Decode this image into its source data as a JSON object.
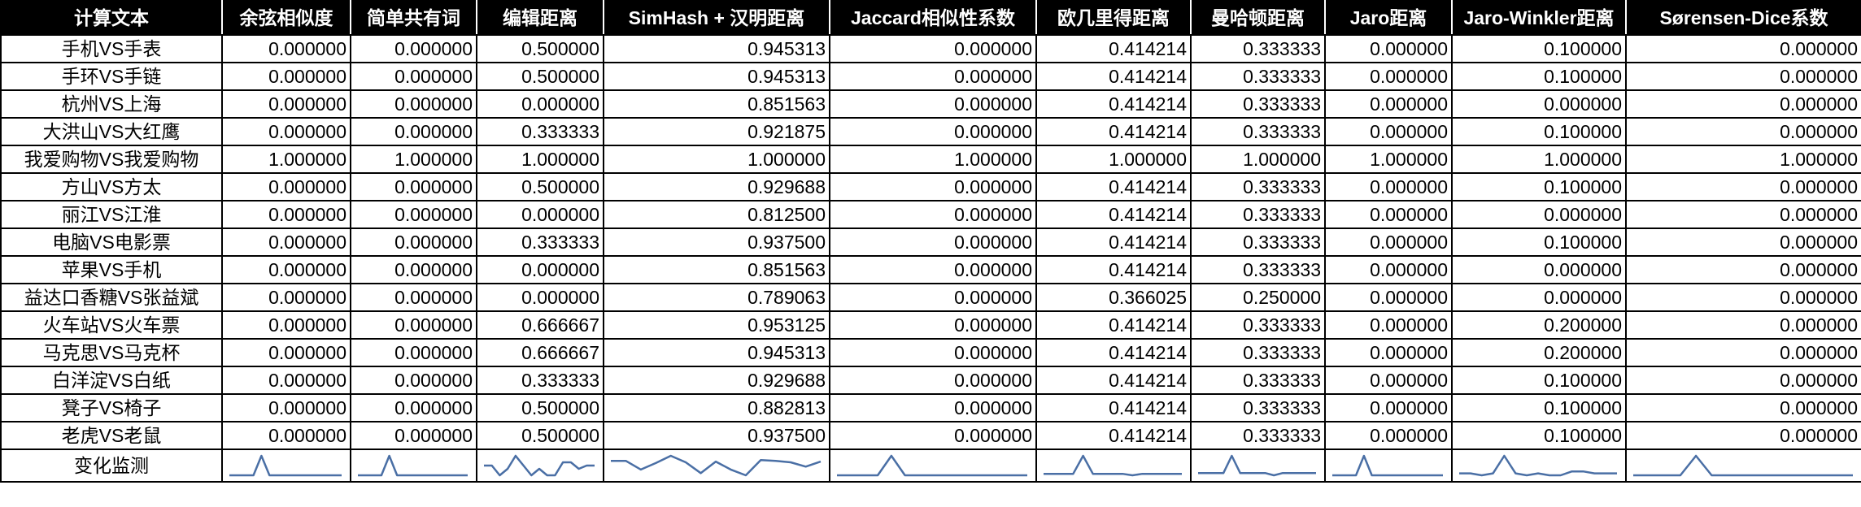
{
  "columns": [
    "计算文本",
    "余弦相似度",
    "简单共有词",
    "编辑距离",
    "SimHash + 汉明距离",
    "Jaccard相似性系数",
    "欧几里得距离",
    "曼哈顿距离",
    "Jaro距离",
    "Jaro-Winkler距离",
    "Sørensen-Dice系数"
  ],
  "rows": [
    {
      "label": "手机VS手表",
      "values": [
        "0.000000",
        "0.000000",
        "0.500000",
        "0.945313",
        "0.000000",
        "0.414214",
        "0.333333",
        "0.000000",
        "0.100000",
        "0.000000"
      ]
    },
    {
      "label": "手环VS手链",
      "values": [
        "0.000000",
        "0.000000",
        "0.500000",
        "0.945313",
        "0.000000",
        "0.414214",
        "0.333333",
        "0.000000",
        "0.100000",
        "0.000000"
      ]
    },
    {
      "label": "杭州VS上海",
      "values": [
        "0.000000",
        "0.000000",
        "0.000000",
        "0.851563",
        "0.000000",
        "0.414214",
        "0.333333",
        "0.000000",
        "0.000000",
        "0.000000"
      ]
    },
    {
      "label": "大洪山VS大红鹰",
      "values": [
        "0.000000",
        "0.000000",
        "0.333333",
        "0.921875",
        "0.000000",
        "0.414214",
        "0.333333",
        "0.000000",
        "0.100000",
        "0.000000"
      ]
    },
    {
      "label": "我爱购物VS我爱购物",
      "values": [
        "1.000000",
        "1.000000",
        "1.000000",
        "1.000000",
        "1.000000",
        "1.000000",
        "1.000000",
        "1.000000",
        "1.000000",
        "1.000000"
      ]
    },
    {
      "label": "方山VS方太",
      "values": [
        "0.000000",
        "0.000000",
        "0.500000",
        "0.929688",
        "0.000000",
        "0.414214",
        "0.333333",
        "0.000000",
        "0.100000",
        "0.000000"
      ]
    },
    {
      "label": "丽江VS江淮",
      "values": [
        "0.000000",
        "0.000000",
        "0.000000",
        "0.812500",
        "0.000000",
        "0.414214",
        "0.333333",
        "0.000000",
        "0.000000",
        "0.000000"
      ]
    },
    {
      "label": "电脑VS电影票",
      "values": [
        "0.000000",
        "0.000000",
        "0.333333",
        "0.937500",
        "0.000000",
        "0.414214",
        "0.333333",
        "0.000000",
        "0.100000",
        "0.000000"
      ]
    },
    {
      "label": "苹果VS手机",
      "values": [
        "0.000000",
        "0.000000",
        "0.000000",
        "0.851563",
        "0.000000",
        "0.414214",
        "0.333333",
        "0.000000",
        "0.000000",
        "0.000000"
      ]
    },
    {
      "label": "益达口香糖VS张益斌",
      "values": [
        "0.000000",
        "0.000000",
        "0.000000",
        "0.789063",
        "0.000000",
        "0.366025",
        "0.250000",
        "0.000000",
        "0.000000",
        "0.000000"
      ]
    },
    {
      "label": "火车站VS火车票",
      "values": [
        "0.000000",
        "0.000000",
        "0.666667",
        "0.953125",
        "0.000000",
        "0.414214",
        "0.333333",
        "0.000000",
        "0.200000",
        "0.000000"
      ]
    },
    {
      "label": "马克思VS马克杯",
      "values": [
        "0.000000",
        "0.000000",
        "0.666667",
        "0.945313",
        "0.000000",
        "0.414214",
        "0.333333",
        "0.000000",
        "0.200000",
        "0.000000"
      ]
    },
    {
      "label": "白洋淀VS白纸",
      "values": [
        "0.000000",
        "0.000000",
        "0.333333",
        "0.929688",
        "0.000000",
        "0.414214",
        "0.333333",
        "0.000000",
        "0.100000",
        "0.000000"
      ]
    },
    {
      "label": "凳子VS椅子",
      "values": [
        "0.000000",
        "0.000000",
        "0.500000",
        "0.882813",
        "0.000000",
        "0.414214",
        "0.333333",
        "0.000000",
        "0.100000",
        "0.000000"
      ]
    },
    {
      "label": "老虎VS老鼠",
      "values": [
        "0.000000",
        "0.000000",
        "0.500000",
        "0.937500",
        "0.000000",
        "0.414214",
        "0.333333",
        "0.000000",
        "0.100000",
        "0.000000"
      ]
    }
  ],
  "sparkline_label": "变化监测",
  "sparkline_color": "#4a6fa5"
}
